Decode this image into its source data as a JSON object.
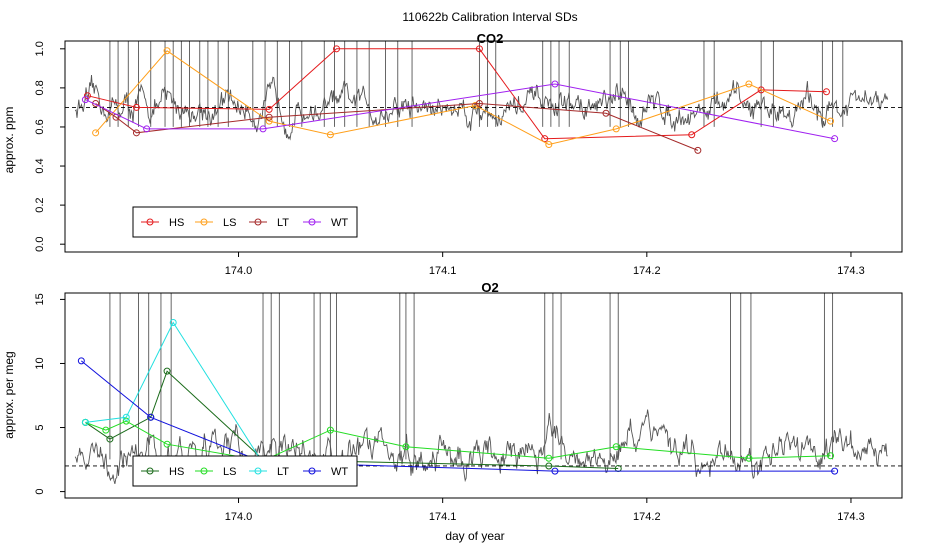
{
  "figure": {
    "suptitle": "110622b   Calibration Interval SDs",
    "xlabel": "day of year"
  },
  "colors": {
    "trace": "#555555",
    "co2_HS": "#e41a1c",
    "co2_LS": "#ff9f1a",
    "co2_LT": "#a52a2a",
    "co2_WT": "#a020f0",
    "o2_HS": "#1a6b1a",
    "o2_LS": "#22dd22",
    "o2_LT": "#22e0e0",
    "o2_WT": "#1010dd"
  },
  "chart_data": [
    {
      "type": "line",
      "title": "CO2",
      "ylabel": "approx. ppm",
      "xlim": [
        173.915,
        174.325
      ],
      "ylim": [
        -0.04,
        1.04
      ],
      "xticks": [
        174.0,
        174.1,
        174.2,
        174.3
      ],
      "xtick_labels": [
        "174.0",
        "174.1",
        "174.2",
        "174.3"
      ],
      "yticks": [
        0.0,
        0.2,
        0.4,
        0.6,
        0.8,
        1.0
      ],
      "ytick_labels": [
        "0.0",
        "0.2",
        "0.4",
        "0.6",
        "0.8",
        "1.0"
      ],
      "reference_line": 0.7,
      "legend_position": "bottom-left",
      "trace": {
        "x_start": 173.92,
        "x_end": 174.318,
        "baseline": 0.7,
        "amplitude": 0.09,
        "spike_x": [
          173.937,
          173.941,
          173.946,
          173.951,
          173.957,
          173.964,
          173.968,
          173.972,
          173.976,
          173.981,
          173.985,
          173.99,
          173.995,
          174.007,
          174.013,
          174.019,
          174.025,
          174.031,
          174.042,
          174.047,
          174.052,
          174.058,
          174.064,
          174.072,
          174.078,
          174.085,
          174.118,
          174.122,
          174.126,
          174.149,
          174.153,
          174.157,
          174.162,
          174.182,
          174.187,
          174.191,
          174.228,
          174.233,
          174.256,
          174.262,
          174.286,
          174.291,
          174.296
        ]
      },
      "series": [
        {
          "name": "HS",
          "x": [
            173.926,
            173.95,
            174.015,
            174.048,
            174.118,
            174.15,
            174.222,
            174.256,
            174.288
          ],
          "y": [
            0.76,
            0.7,
            0.69,
            1.0,
            1.0,
            0.54,
            0.56,
            0.79,
            0.78
          ]
        },
        {
          "name": "LS",
          "x": [
            173.93,
            173.965,
            174.015,
            174.045,
            174.116,
            174.152,
            174.185,
            174.25,
            174.29
          ],
          "y": [
            0.57,
            0.99,
            0.63,
            0.56,
            0.71,
            0.51,
            0.59,
            0.82,
            0.63
          ]
        },
        {
          "name": "LT",
          "x": [
            173.93,
            173.94,
            173.95,
            174.015,
            174.118,
            174.18,
            174.225
          ],
          "y": [
            0.72,
            0.65,
            0.57,
            0.65,
            0.72,
            0.67,
            0.48
          ]
        },
        {
          "name": "WT",
          "x": [
            173.925,
            173.955,
            174.012,
            174.155,
            174.292
          ],
          "y": [
            0.74,
            0.59,
            0.59,
            0.82,
            0.54
          ]
        }
      ]
    },
    {
      "type": "line",
      "title": "O2",
      "ylabel": "approx. per meg",
      "xlim": [
        173.915,
        174.325
      ],
      "ylim": [
        -0.5,
        15.5
      ],
      "xticks": [
        174.0,
        174.1,
        174.2,
        174.3
      ],
      "xtick_labels": [
        "174.0",
        "174.1",
        "174.2",
        "174.3"
      ],
      "yticks": [
        0,
        5,
        10,
        15
      ],
      "ytick_labels": [
        "0",
        "5",
        "10",
        "15"
      ],
      "reference_line": 2.0,
      "legend_position": "bottom-left",
      "trace": {
        "x_start": 173.92,
        "x_end": 174.318,
        "baseline": 3.0,
        "amplitude": 1.6,
        "spike_x": [
          173.937,
          173.942,
          173.951,
          173.956,
          173.962,
          173.967,
          174.012,
          174.016,
          174.02,
          174.037,
          174.04,
          174.045,
          174.048,
          174.079,
          174.082,
          174.086,
          174.15,
          174.154,
          174.158,
          174.182,
          174.186,
          174.241,
          174.246,
          174.251,
          174.287,
          174.291
        ]
      },
      "series": [
        {
          "name": "HS",
          "x": [
            173.925,
            173.937,
            173.957,
            173.965,
            174.012,
            174.152,
            174.186
          ],
          "y": [
            5.4,
            4.1,
            5.8,
            9.4,
            2.5,
            2.0,
            1.8
          ]
        },
        {
          "name": "LS",
          "x": [
            173.925,
            173.935,
            173.945,
            173.965,
            174.012,
            174.045,
            174.082,
            174.152,
            174.185,
            174.25,
            174.29
          ],
          "y": [
            5.4,
            4.8,
            5.5,
            3.7,
            2.4,
            4.8,
            3.5,
            2.6,
            3.5,
            2.6,
            2.8
          ]
        },
        {
          "name": "LT",
          "x": [
            173.925,
            173.945,
            173.968,
            174.012
          ],
          "y": [
            5.4,
            5.8,
            13.2,
            2.2
          ]
        },
        {
          "name": "WT",
          "x": [
            173.923,
            173.957,
            174.012,
            174.155,
            174.292
          ],
          "y": [
            10.2,
            5.8,
            2.3,
            1.6,
            1.6
          ]
        }
      ]
    }
  ]
}
